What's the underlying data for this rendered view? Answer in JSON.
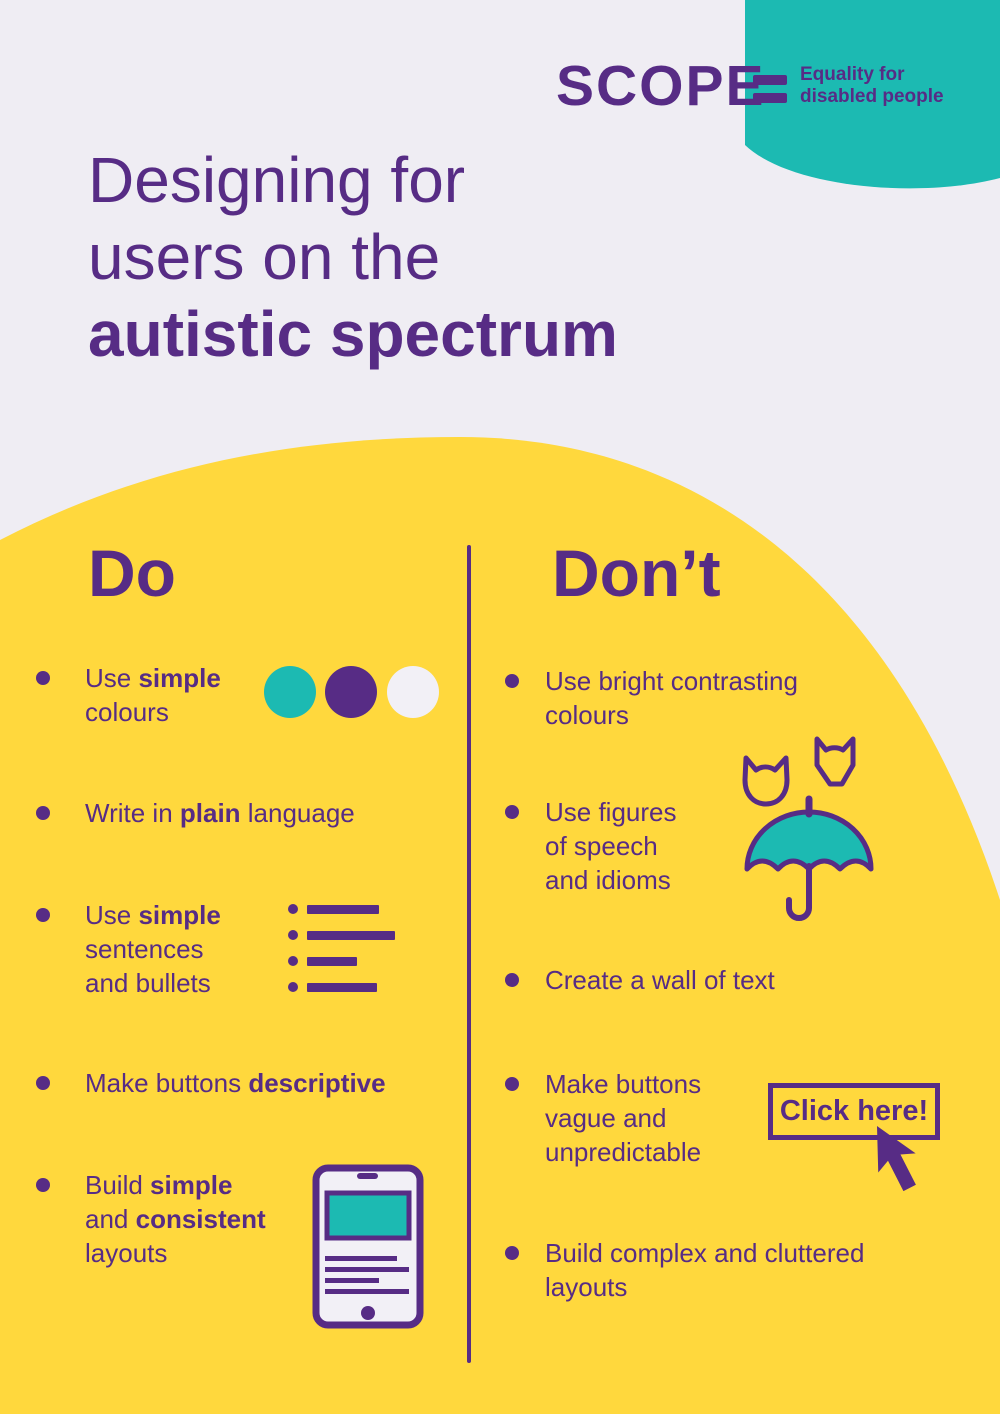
{
  "colors": {
    "background": "#efedf3",
    "purple": "#572c85",
    "teal": "#1cbab2",
    "yellow": "#ffd83d",
    "off_white": "#f2f0f6"
  },
  "logo": {
    "brand": "SCOPE",
    "equals_icon": "equals-icon",
    "tagline": [
      "Equality for",
      "disabled people"
    ]
  },
  "title": {
    "lines": [
      {
        "text": "Designing for",
        "bold": false
      },
      {
        "text": "users on the",
        "bold": false
      },
      {
        "text": "autistic spectrum",
        "bold": true
      }
    ]
  },
  "do_column": {
    "heading": "Do",
    "items": [
      {
        "id": "use-simple-colours",
        "icon": "colour-swatch-circles-icon",
        "lines": [
          [
            {
              "t": "Use "
            },
            {
              "t": "simple",
              "b": true
            }
          ],
          [
            {
              "t": "colours"
            }
          ]
        ]
      },
      {
        "id": "write-in-plain-language",
        "lines": [
          [
            {
              "t": "Write in "
            },
            {
              "t": "plain",
              "b": true
            },
            {
              "t": " language"
            }
          ]
        ]
      },
      {
        "id": "use-simple-sentences-and-bullets",
        "icon": "bullet-list-icon",
        "lines": [
          [
            {
              "t": "Use "
            },
            {
              "t": "simple",
              "b": true
            }
          ],
          [
            {
              "t": "sentences"
            }
          ],
          [
            {
              "t": "and bullets"
            }
          ]
        ]
      },
      {
        "id": "make-buttons-descriptive",
        "lines": [
          [
            {
              "t": "Make buttons "
            },
            {
              "t": "descriptive",
              "b": true
            }
          ]
        ]
      },
      {
        "id": "build-simple-consistent-layouts",
        "icon": "tablet-layout-icon",
        "lines": [
          [
            {
              "t": "Build "
            },
            {
              "t": "simple",
              "b": true
            }
          ],
          [
            {
              "t": "and "
            },
            {
              "t": "consistent",
              "b": true
            }
          ],
          [
            {
              "t": "layouts"
            }
          ]
        ]
      }
    ]
  },
  "dont_column": {
    "heading": "Don’t",
    "items": [
      {
        "id": "use-bright-contrasting-colours",
        "lines": [
          [
            {
              "t": "Use bright contrasting"
            }
          ],
          [
            {
              "t": "colours"
            }
          ]
        ]
      },
      {
        "id": "use-figures-of-speech-and-idioms",
        "icon": "raining-cats-umbrella-icon",
        "lines": [
          [
            {
              "t": "Use figures"
            }
          ],
          [
            {
              "t": "of speech"
            }
          ],
          [
            {
              "t": "and idioms"
            }
          ]
        ]
      },
      {
        "id": "create-a-wall-of-text",
        "lines": [
          [
            {
              "t": "Create a wall of text"
            }
          ]
        ]
      },
      {
        "id": "make-buttons-vague-and-unpredictable",
        "icon": "click-here-button-with-cursor",
        "lines": [
          [
            {
              "t": "Make buttons"
            }
          ],
          [
            {
              "t": "vague and"
            }
          ],
          [
            {
              "t": "unpredictable"
            }
          ]
        ]
      },
      {
        "id": "build-complex-and-cluttered-layouts",
        "lines": [
          [
            {
              "t": "Build complex and cluttered"
            }
          ],
          [
            {
              "t": "layouts"
            }
          ]
        ]
      }
    ]
  },
  "click_button": {
    "label": "Click here!"
  },
  "swatches": [
    "#1cbab2",
    "#572c85",
    "#f2f0f6"
  ]
}
